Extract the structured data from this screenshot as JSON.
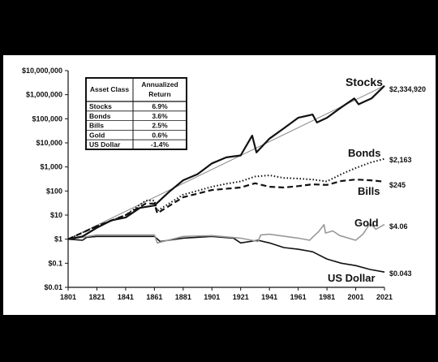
{
  "chart_data": {
    "type": "line",
    "title": "",
    "xlabel": "",
    "ylabel": "",
    "y_scale": "log",
    "xlim": [
      1801,
      2021
    ],
    "ylim": [
      0.01,
      10000000
    ],
    "x_ticks": [
      "1801",
      "1821",
      "1841",
      "1861",
      "1881",
      "1901",
      "1921",
      "1941",
      "1961",
      "1981",
      "2001",
      "2021"
    ],
    "y_ticks": [
      "$10,000,000",
      "$1,000,000",
      "$100,000",
      "$10,000",
      "$1,000",
      "$100",
      "$10",
      "$1",
      "$0.1",
      "$0.01"
    ],
    "grid": false,
    "table": {
      "headers": [
        "Asset Class",
        "Annualized Return"
      ],
      "rows": [
        [
          "Stocks",
          "6.9%"
        ],
        [
          "Bonds",
          "3.6%"
        ],
        [
          "Bills",
          "2.5%"
        ],
        [
          "Gold",
          "0.6%"
        ],
        [
          "US Dollar",
          "-1.4%"
        ]
      ]
    },
    "series": [
      {
        "name": "Stocks",
        "end_label": "$2,334,920",
        "style": "solid-thick",
        "color": "#111111",
        "points": [
          [
            1801,
            1
          ],
          [
            1811,
            1.3
          ],
          [
            1821,
            3
          ],
          [
            1831,
            6
          ],
          [
            1841,
            8
          ],
          [
            1851,
            20
          ],
          [
            1861,
            25
          ],
          [
            1871,
            90
          ],
          [
            1881,
            280
          ],
          [
            1891,
            500
          ],
          [
            1901,
            1400
          ],
          [
            1911,
            2500
          ],
          [
            1921,
            3000
          ],
          [
            1929,
            20000
          ],
          [
            1932,
            4000
          ],
          [
            1941,
            15000
          ],
          [
            1951,
            40000
          ],
          [
            1961,
            110000
          ],
          [
            1971,
            150000
          ],
          [
            1974,
            70000
          ],
          [
            1981,
            110000
          ],
          [
            1991,
            300000
          ],
          [
            2000,
            700000
          ],
          [
            2003,
            400000
          ],
          [
            2008,
            550000
          ],
          [
            2012,
            700000
          ],
          [
            2021,
            2334920
          ]
        ]
      },
      {
        "name": "Bonds",
        "end_label": "$2,163",
        "style": "dotted",
        "color": "#111111",
        "points": [
          [
            1801,
            1
          ],
          [
            1821,
            3.5
          ],
          [
            1841,
            10
          ],
          [
            1855,
            40
          ],
          [
            1861,
            40
          ],
          [
            1863,
            15
          ],
          [
            1881,
            70
          ],
          [
            1901,
            150
          ],
          [
            1911,
            200
          ],
          [
            1921,
            250
          ],
          [
            1931,
            400
          ],
          [
            1941,
            450
          ],
          [
            1951,
            350
          ],
          [
            1961,
            330
          ],
          [
            1971,
            300
          ],
          [
            1981,
            250
          ],
          [
            1991,
            500
          ],
          [
            2001,
            900
          ],
          [
            2011,
            1500
          ],
          [
            2021,
            2163
          ]
        ]
      },
      {
        "name": "Bills",
        "end_label": "$245",
        "style": "dashed",
        "color": "#111111",
        "points": [
          [
            1801,
            1
          ],
          [
            1821,
            3.5
          ],
          [
            1841,
            10
          ],
          [
            1855,
            30
          ],
          [
            1861,
            30
          ],
          [
            1863,
            12
          ],
          [
            1881,
            55
          ],
          [
            1901,
            110
          ],
          [
            1921,
            140
          ],
          [
            1931,
            210
          ],
          [
            1941,
            150
          ],
          [
            1951,
            140
          ],
          [
            1961,
            160
          ],
          [
            1971,
            190
          ],
          [
            1981,
            180
          ],
          [
            1991,
            260
          ],
          [
            2001,
            300
          ],
          [
            2011,
            280
          ],
          [
            2021,
            245
          ]
        ]
      },
      {
        "name": "Gold",
        "end_label": "$4.06",
        "style": "solid",
        "color": "#999999",
        "points": [
          [
            1801,
            1
          ],
          [
            1811,
            1.2
          ],
          [
            1821,
            1.5
          ],
          [
            1841,
            1.5
          ],
          [
            1861,
            1.5
          ],
          [
            1863,
            0.7
          ],
          [
            1881,
            1.3
          ],
          [
            1901,
            1.4
          ],
          [
            1921,
            1.1
          ],
          [
            1933,
            0.8
          ],
          [
            1935,
            1.5
          ],
          [
            1941,
            1.6
          ],
          [
            1961,
            1.1
          ],
          [
            1969,
            0.9
          ],
          [
            1971,
            1.2
          ],
          [
            1975,
            2
          ],
          [
            1979,
            4
          ],
          [
            1980,
            1.8
          ],
          [
            1985,
            2.2
          ],
          [
            1990,
            1.4
          ],
          [
            2001,
            0.9
          ],
          [
            2006,
            1.6
          ],
          [
            2011,
            4.5
          ],
          [
            2015,
            2.6
          ],
          [
            2021,
            4.06
          ]
        ]
      },
      {
        "name": "US Dollar",
        "end_label": "$0.043",
        "style": "solid",
        "color": "#111111",
        "points": [
          [
            1801,
            1
          ],
          [
            1811,
            0.9
          ],
          [
            1814,
            1.2
          ],
          [
            1821,
            1.3
          ],
          [
            1861,
            1.3
          ],
          [
            1865,
            0.8
          ],
          [
            1881,
            1.1
          ],
          [
            1901,
            1.3
          ],
          [
            1916,
            1.1
          ],
          [
            1921,
            0.7
          ],
          [
            1933,
            0.9
          ],
          [
            1941,
            0.7
          ],
          [
            1951,
            0.45
          ],
          [
            1961,
            0.38
          ],
          [
            1971,
            0.3
          ],
          [
            1981,
            0.15
          ],
          [
            1991,
            0.1
          ],
          [
            2001,
            0.08
          ],
          [
            2011,
            0.055
          ],
          [
            2021,
            0.043
          ]
        ]
      },
      {
        "name": "Stocks trend",
        "style": "solid-thin",
        "color": "#888888",
        "points": [
          [
            1801,
            1
          ],
          [
            2021,
            2334920
          ]
        ]
      }
    ]
  }
}
